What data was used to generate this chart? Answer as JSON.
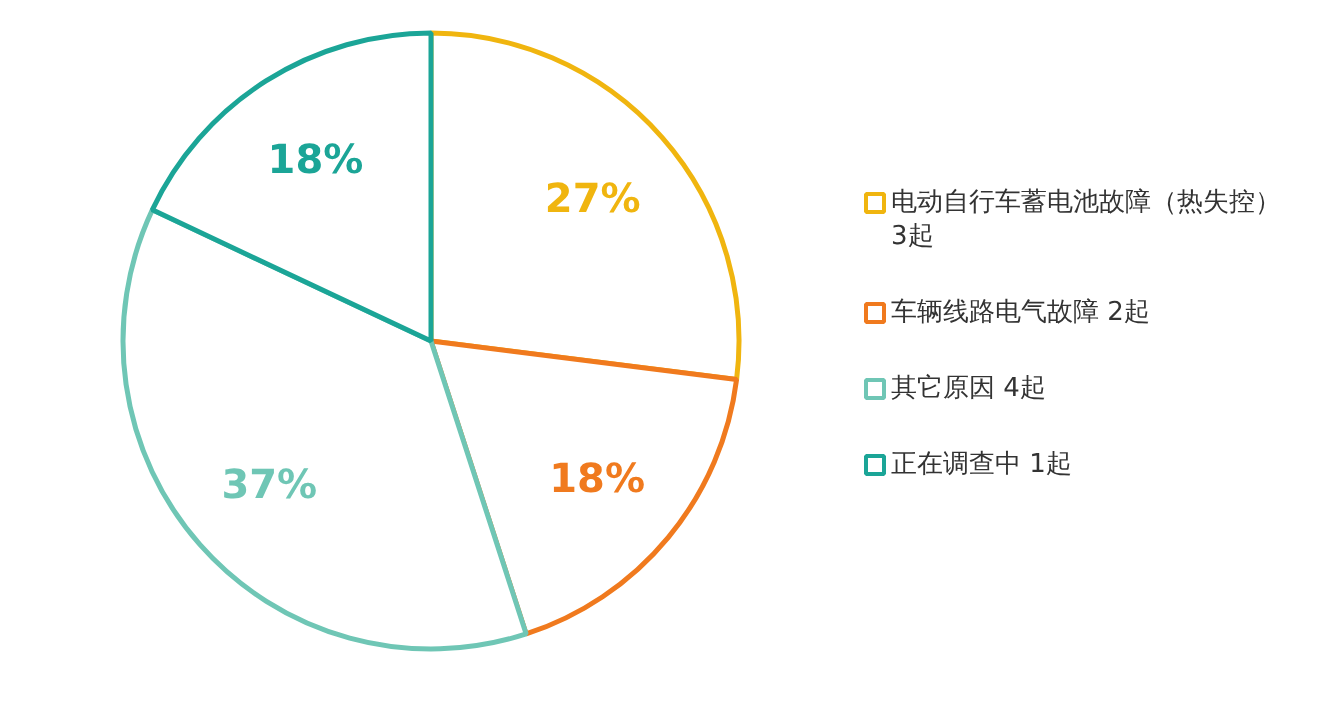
{
  "chart_data": {
    "type": "pie",
    "categories": [
      "电动自行车蓄电池故障（热失控） 3起",
      "车辆线路电气故障 2起",
      "其它原因 4起",
      "正在调查中 1起"
    ],
    "values": [
      27,
      18,
      37,
      18
    ],
    "colors": [
      "#f0b50f",
      "#f07a1e",
      "#6fc6b5",
      "#1ba597"
    ],
    "value_labels": [
      "27%",
      "18%",
      "37%",
      "18%"
    ],
    "legend": "right"
  }
}
